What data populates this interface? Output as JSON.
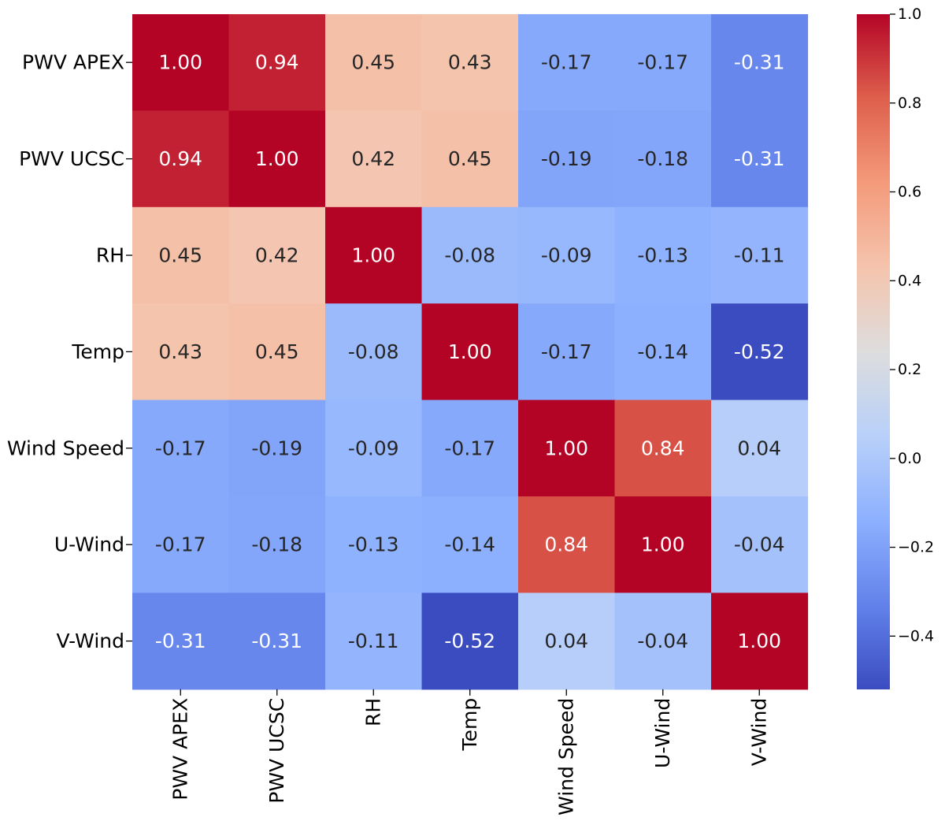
{
  "chart_data": {
    "type": "heatmap",
    "title": "",
    "xlabel": "",
    "ylabel": "",
    "labels": [
      "PWV APEX",
      "PWV UCSC",
      "RH",
      "Temp",
      "Wind Speed",
      "U-Wind",
      "V-Wind"
    ],
    "matrix": [
      [
        1.0,
        0.94,
        0.45,
        0.43,
        -0.17,
        -0.17,
        -0.31
      ],
      [
        0.94,
        1.0,
        0.42,
        0.45,
        -0.19,
        -0.18,
        -0.31
      ],
      [
        0.45,
        0.42,
        1.0,
        -0.08,
        -0.09,
        -0.13,
        -0.11
      ],
      [
        0.43,
        0.45,
        -0.08,
        1.0,
        -0.17,
        -0.14,
        -0.52
      ],
      [
        -0.17,
        -0.19,
        -0.09,
        -0.17,
        1.0,
        0.84,
        0.04
      ],
      [
        -0.17,
        -0.18,
        -0.13,
        -0.14,
        0.84,
        1.0,
        -0.04
      ],
      [
        -0.31,
        -0.31,
        -0.11,
        -0.52,
        0.04,
        -0.04,
        1.0
      ]
    ],
    "cell_labels": [
      [
        "1.00",
        "0.94",
        "0.45",
        "0.43",
        "-0.17",
        "-0.17",
        "-0.31"
      ],
      [
        "0.94",
        "1.00",
        "0.42",
        "0.45",
        "-0.19",
        "-0.18",
        "-0.31"
      ],
      [
        "0.45",
        "0.42",
        "1.00",
        "-0.08",
        "-0.09",
        "-0.13",
        "-0.11"
      ],
      [
        "0.43",
        "0.45",
        "-0.08",
        "1.00",
        "-0.17",
        "-0.14",
        "-0.52"
      ],
      [
        "-0.17",
        "-0.19",
        "-0.09",
        "-0.17",
        "1.00",
        "0.84",
        "0.04"
      ],
      [
        "-0.17",
        "-0.18",
        "-0.13",
        "-0.14",
        "0.84",
        "1.00",
        "-0.04"
      ],
      [
        "-0.31",
        "-0.31",
        "-0.11",
        "-0.52",
        "0.04",
        "-0.04",
        "1.00"
      ]
    ],
    "colormap": "coolwarm",
    "vmin": -0.52,
    "vmax": 1.0,
    "colorbar": {
      "ticks": [
        1.0,
        0.8,
        0.6,
        0.4,
        0.2,
        0.0,
        -0.2,
        -0.4
      ],
      "tick_labels": [
        "1.0",
        "0.8",
        "0.6",
        "0.4",
        "0.2",
        "0.0",
        "−0.2",
        "−0.4"
      ],
      "placement": "right"
    }
  }
}
